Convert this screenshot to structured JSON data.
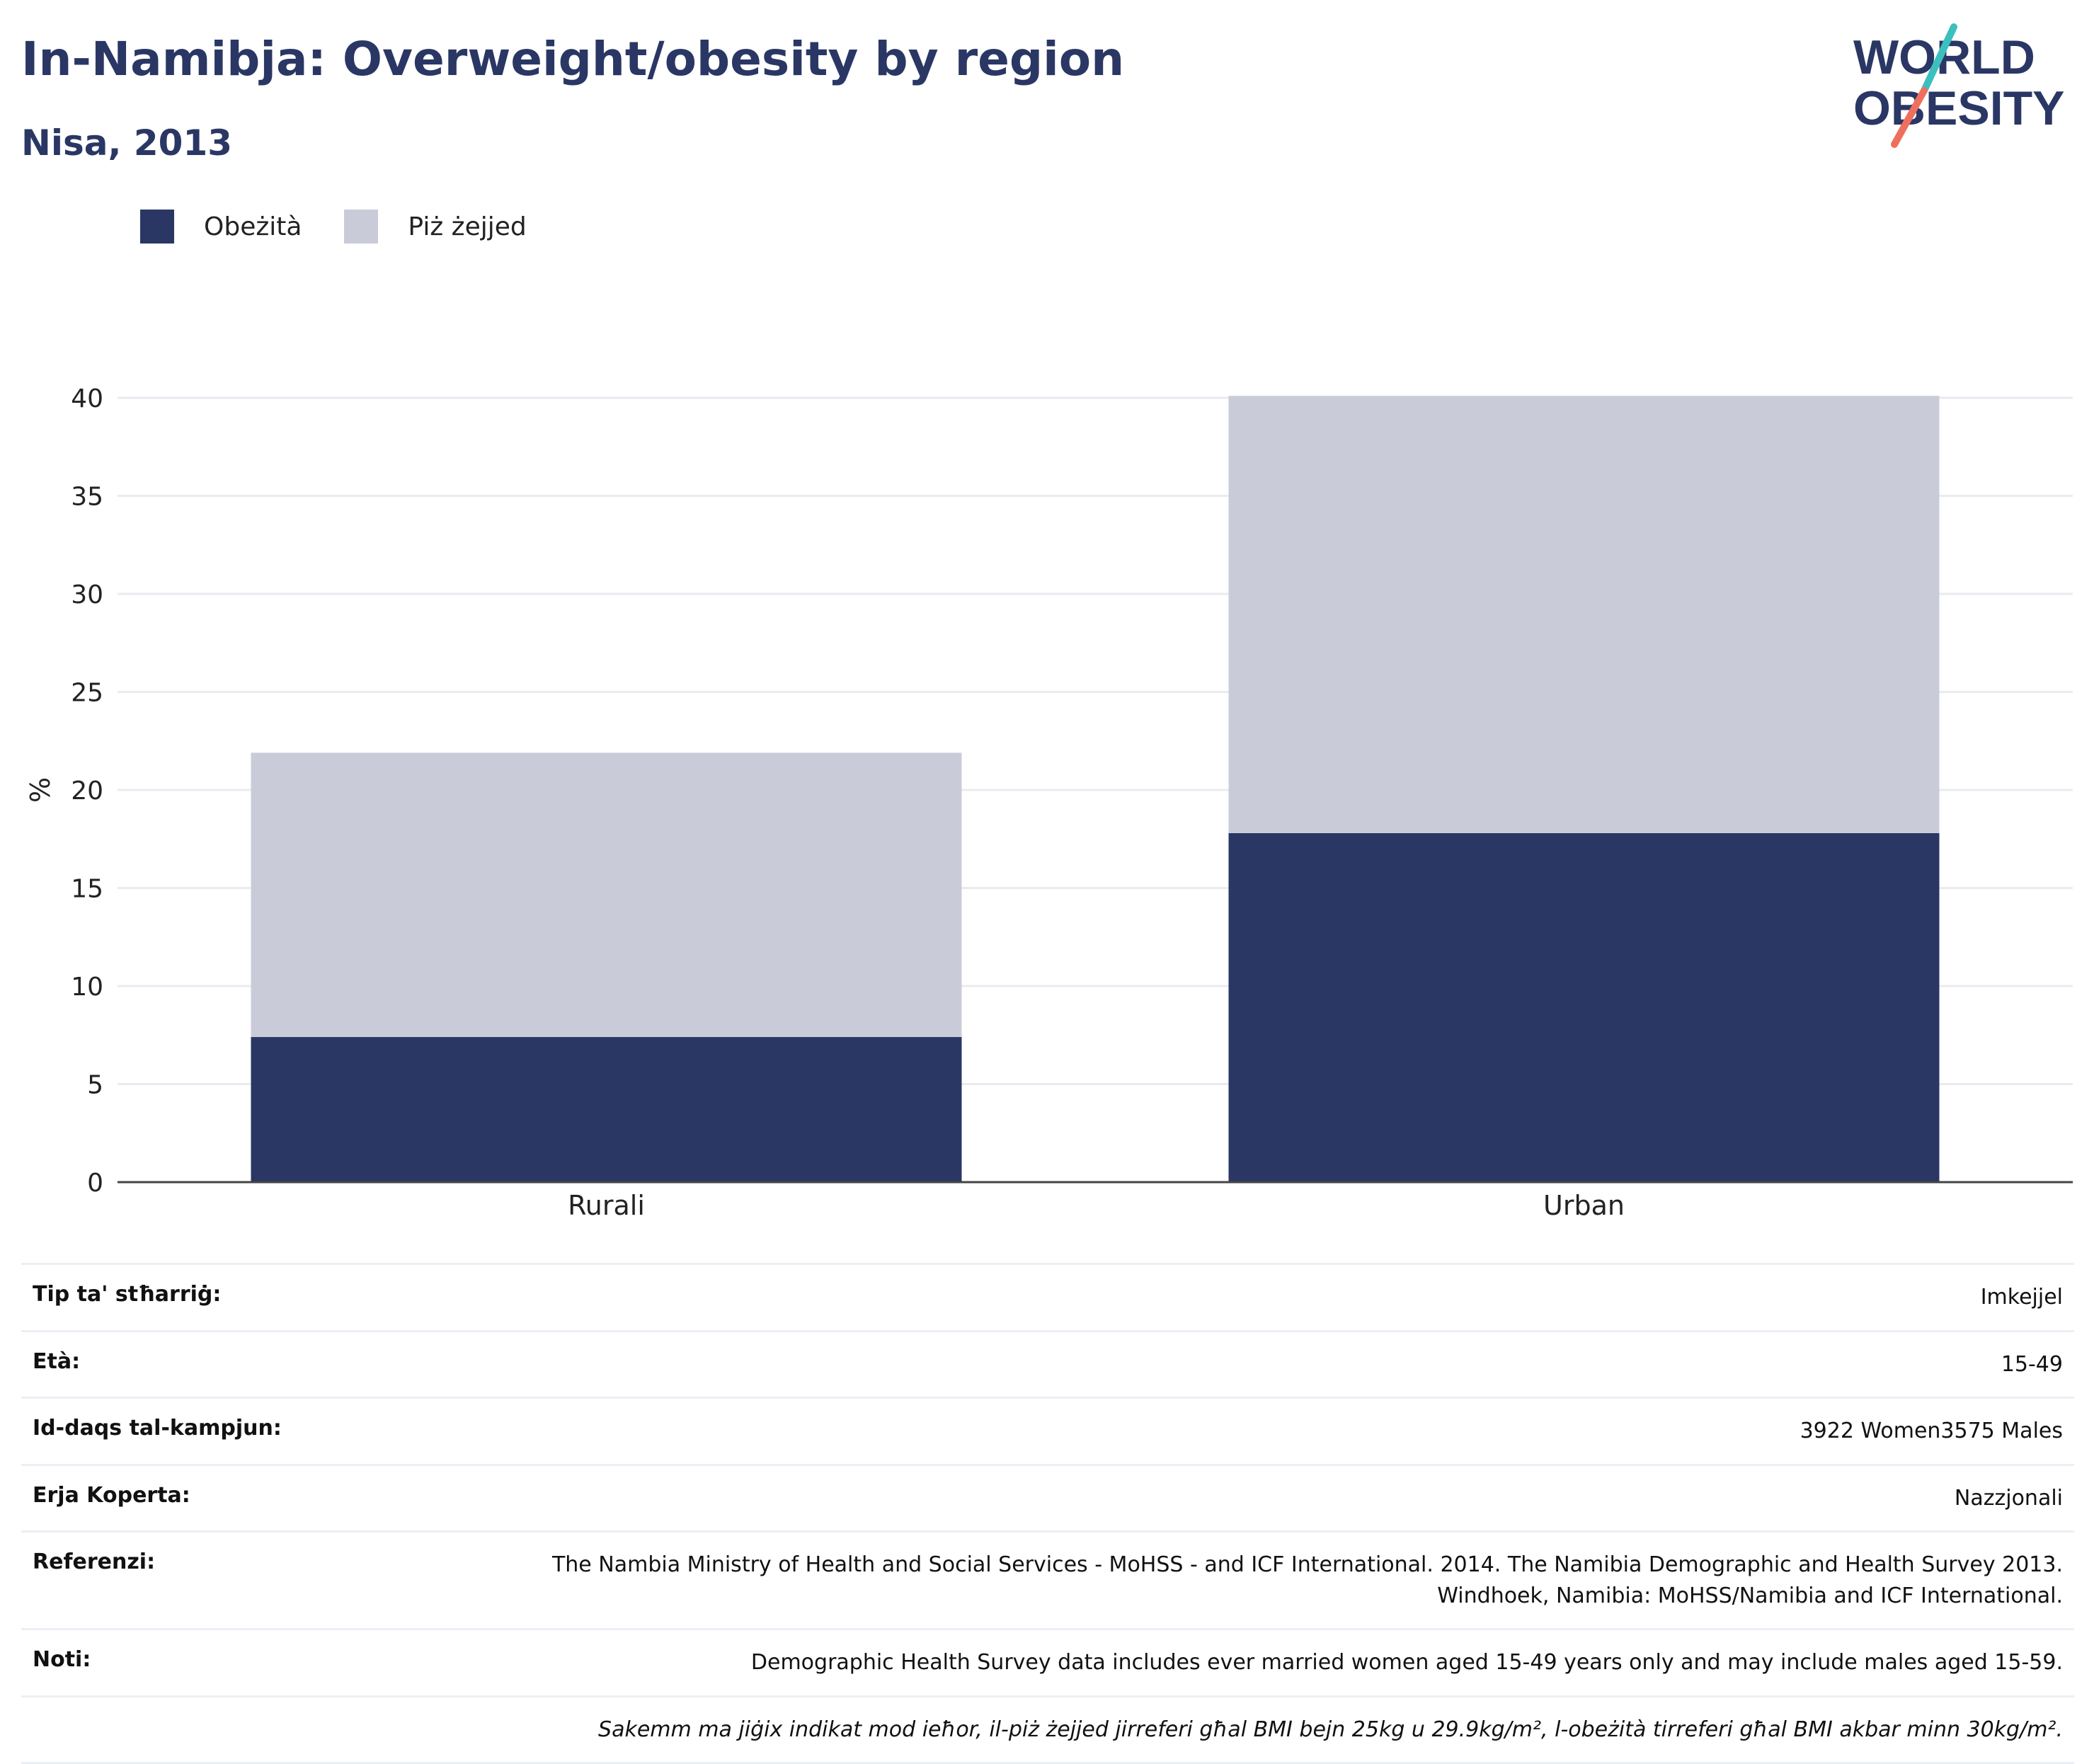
{
  "header": {
    "title": "In-Namibja: Overweight/obesity by region",
    "subtitle": "Nisa, 2013"
  },
  "logo": {
    "line1": "WORLD",
    "line2": "OBESITY"
  },
  "legend": [
    {
      "label": "Obeżità",
      "color": "#2a3764"
    },
    {
      "label": "Piż żejjed",
      "color": "#c9ccd8"
    }
  ],
  "chart_data": {
    "type": "bar",
    "stacked": true,
    "categories": [
      "Rurali",
      "Urban"
    ],
    "series": [
      {
        "name": "Obeżità",
        "color": "#2a3764",
        "values": [
          7.4,
          17.8
        ]
      },
      {
        "name": "Piż żejjed",
        "color": "#c9ccd8",
        "values": [
          14.5,
          22.3
        ]
      }
    ],
    "ylabel": "%",
    "ylim": [
      0,
      40
    ],
    "yticks": [
      "0",
      "5",
      "10",
      "15",
      "20",
      "25",
      "30",
      "35",
      "40"
    ],
    "grid": true
  },
  "meta": [
    {
      "label": "Tip ta' stħarriġ:",
      "value": "Imkejjel"
    },
    {
      "label": "Età:",
      "value": "15-49"
    },
    {
      "label": "Id-daqs tal-kampjun:",
      "value": "3922 Women3575 Males"
    },
    {
      "label": "Erja Koperta:",
      "value": "Nazzjonali"
    },
    {
      "label": "Referenzi:",
      "value": "The Nambia Ministry of Health and Social Services - MoHSS - and ICF International. 2014. The Namibia Demographic and Health Survey 2013. Windhoek, Namibia: MoHSS/Namibia and ICF International."
    },
    {
      "label": "Noti:",
      "value": "Demographic Health Survey data includes ever married women aged 15-49 years only and may include males aged 15-59."
    },
    {
      "label": "",
      "value": "Sakemm ma jiġix indikat mod ieħor, il-piż żejjed jirreferi għal BMI bejn 25kg u 29.9kg/m², l-obeżità tirreferi għal BMI akbar minn 30kg/m²."
    }
  ]
}
